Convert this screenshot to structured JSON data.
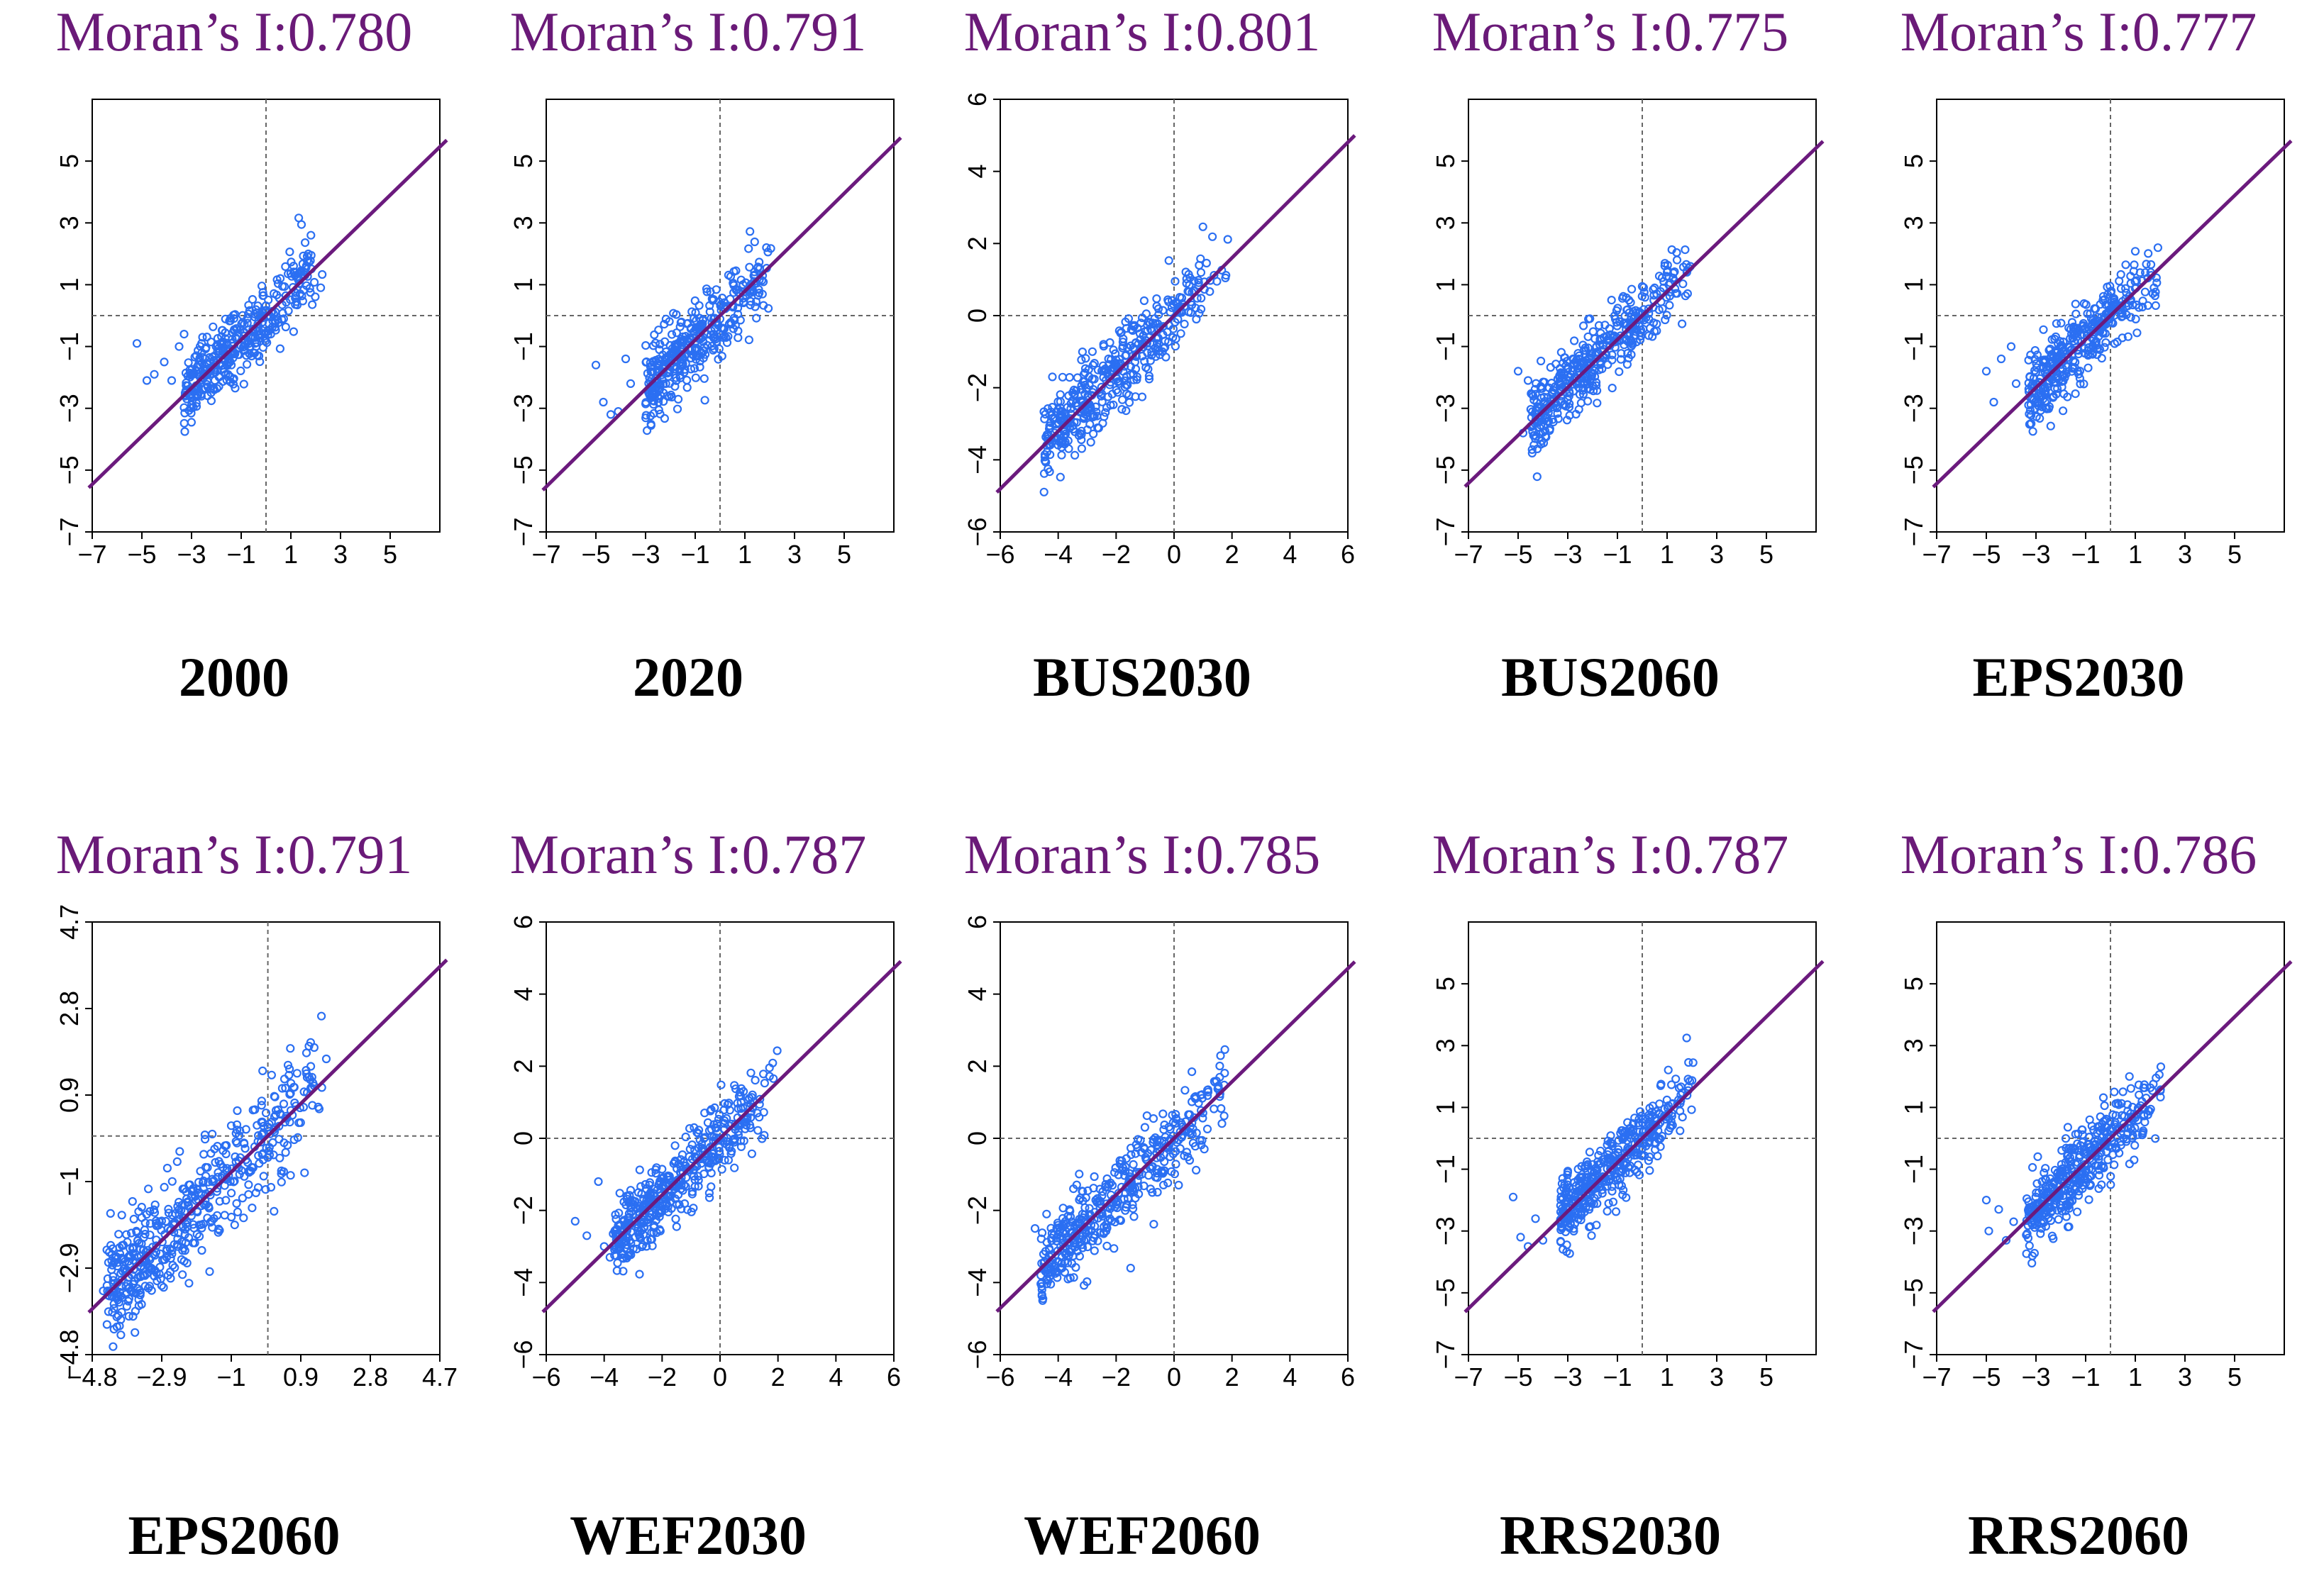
{
  "colors": {
    "title": "#6a1a78",
    "fit_line": "#6b1a7d",
    "points": "#2b6ff2",
    "reference": "#666666"
  },
  "chart_data": [
    {
      "type": "scatter",
      "title": "Moran’s I:0.780",
      "label": "2000",
      "xlim": [
        -7,
        7
      ],
      "ylim": [
        -7,
        7
      ],
      "xticks": [
        -7,
        -5,
        -3,
        -1,
        1,
        3,
        5
      ],
      "yticks": [
        -7,
        -5,
        -3,
        -1,
        1,
        3,
        5
      ],
      "xtick_labels": [
        "−7",
        "−5",
        "−3",
        "−1",
        "1",
        "3",
        "5"
      ],
      "ytick_labels": [
        "−7",
        "−5",
        "−3",
        "−1",
        "1",
        "3",
        "5"
      ],
      "vline": 0,
      "hline": 0,
      "slope": 0.78,
      "intercept": 0,
      "x_range": [
        -3.3,
        2.3
      ],
      "spread": 0.6,
      "n_points": 380,
      "seed": 11,
      "outliers": [
        [
          -5.2,
          -0.9
        ],
        [
          -4.8,
          -2.1
        ],
        [
          -4.5,
          -1.9
        ],
        [
          -4.1,
          -1.5
        ],
        [
          -3.8,
          -2.1
        ],
        [
          -3.5,
          -1.0
        ],
        [
          -3.3,
          -0.6
        ]
      ]
    },
    {
      "type": "scatter",
      "title": "Moran’s I:0.791",
      "label": "2020",
      "xlim": [
        -7,
        7
      ],
      "ylim": [
        -7,
        7
      ],
      "xticks": [
        -7,
        -5,
        -3,
        -1,
        1,
        3,
        5
      ],
      "yticks": [
        -7,
        -5,
        -3,
        -1,
        1,
        3,
        5
      ],
      "xtick_labels": [
        "−7",
        "−5",
        "−3",
        "−1",
        "1",
        "3",
        "5"
      ],
      "ytick_labels": [
        "−7",
        "−5",
        "−3",
        "−1",
        "1",
        "3",
        "5"
      ],
      "vline": 0,
      "hline": 0,
      "slope": 0.791,
      "intercept": 0,
      "x_range": [
        -3.0,
        2.2
      ],
      "spread": 0.62,
      "n_points": 380,
      "seed": 23,
      "outliers": [
        [
          -5.0,
          -1.6
        ],
        [
          -4.7,
          -2.8
        ],
        [
          -4.4,
          -3.2
        ],
        [
          -4.1,
          -3.1
        ],
        [
          -3.8,
          -1.4
        ],
        [
          -3.6,
          -2.2
        ]
      ]
    },
    {
      "type": "scatter",
      "title": "Moran’s I:0.801",
      "label": "BUS2030",
      "xlim": [
        -6,
        6
      ],
      "ylim": [
        -6,
        6
      ],
      "xticks": [
        -6,
        -4,
        -2,
        0,
        2,
        4,
        6
      ],
      "yticks": [
        -6,
        -4,
        -2,
        0,
        2,
        4,
        6
      ],
      "xtick_labels": [
        "−6",
        "−4",
        "−2",
        "0",
        "2",
        "4",
        "6"
      ],
      "ytick_labels": [
        "−6",
        "−4",
        "−2",
        "0",
        "2",
        "4",
        "6"
      ],
      "vline": 0,
      "hline": 0,
      "slope": 0.801,
      "intercept": 0,
      "x_range": [
        -4.5,
        2.0
      ],
      "spread": 0.55,
      "n_points": 420,
      "seed": 37,
      "outliers": [
        [
          -4.4,
          -3.6
        ],
        [
          -4.2,
          -1.7
        ],
        [
          -4.0,
          -2.6
        ],
        [
          -3.9,
          -3.4
        ]
      ]
    },
    {
      "type": "scatter",
      "title": "Moran’s I:0.775",
      "label": "BUS2060",
      "xlim": [
        -7,
        7
      ],
      "ylim": [
        -7,
        7
      ],
      "xticks": [
        -7,
        -5,
        -3,
        -1,
        1,
        3,
        5
      ],
      "yticks": [
        -7,
        -5,
        -3,
        -1,
        1,
        3,
        5
      ],
      "xtick_labels": [
        "−7",
        "−5",
        "−3",
        "−1",
        "1",
        "3",
        "5"
      ],
      "ytick_labels": [
        "−7",
        "−5",
        "−3",
        "−1",
        "1",
        "3",
        "5"
      ],
      "vline": 0,
      "hline": 0,
      "slope": 0.775,
      "intercept": 0,
      "x_range": [
        -4.5,
        2.2
      ],
      "spread": 0.6,
      "n_points": 420,
      "seed": 41,
      "outliers": [
        [
          -5.0,
          -1.8
        ],
        [
          -4.8,
          -3.8
        ],
        [
          -4.6,
          -2.1
        ],
        [
          -4.3,
          -3.4
        ]
      ]
    },
    {
      "type": "scatter",
      "title": "Moran’s I:0.777",
      "label": "EPS2030",
      "xlim": [
        -7,
        7
      ],
      "ylim": [
        -7,
        7
      ],
      "xticks": [
        -7,
        -5,
        -3,
        -1,
        1,
        3,
        5
      ],
      "yticks": [
        -7,
        -5,
        -3,
        -1,
        1,
        3,
        5
      ],
      "xtick_labels": [
        "−7",
        "−5",
        "−3",
        "−1",
        "1",
        "3",
        "5"
      ],
      "ytick_labels": [
        "−7",
        "−5",
        "−3",
        "−1",
        "1",
        "3",
        "5"
      ],
      "vline": 0,
      "hline": 0,
      "slope": 0.777,
      "intercept": 0,
      "x_range": [
        -3.3,
        2.1
      ],
      "spread": 0.6,
      "n_points": 380,
      "seed": 53,
      "outliers": [
        [
          -5.0,
          -1.8
        ],
        [
          -4.7,
          -2.8
        ],
        [
          -4.4,
          -1.4
        ],
        [
          -4.0,
          -1.0
        ],
        [
          -3.8,
          -2.2
        ]
      ]
    },
    {
      "type": "scatter",
      "title": "Moran’s I:0.791",
      "label": "EPS2060",
      "xlim": [
        -4.8,
        4.7
      ],
      "ylim": [
        -4.8,
        4.7
      ],
      "xticks": [
        -4.8,
        -2.9,
        -1,
        0.9,
        2.8,
        4.7
      ],
      "yticks": [
        -4.8,
        -2.9,
        -1,
        0.9,
        2.8,
        4.7
      ],
      "xtick_labels": [
        "−4.8",
        "−2.9",
        "−1",
        "0.9",
        "2.8",
        "4.7"
      ],
      "ytick_labels": [
        "−4.8",
        "−2.9",
        "−1",
        "0.9",
        "2.8",
        "4.7"
      ],
      "vline": 0,
      "hline": 0,
      "slope": 0.791,
      "intercept": 0,
      "x_range": [
        -4.4,
        1.6
      ],
      "spread": 0.55,
      "n_points": 520,
      "seed": 67,
      "outliers": [
        [
          -4.5,
          -3.4
        ],
        [
          -4.4,
          -2.5
        ],
        [
          -4.3,
          -1.7
        ],
        [
          -4.1,
          -3.6
        ]
      ]
    },
    {
      "type": "scatter",
      "title": "Moran’s I:0.787",
      "label": "WEF2030",
      "xlim": [
        -6,
        6
      ],
      "ylim": [
        -6,
        6
      ],
      "xticks": [
        -6,
        -4,
        -2,
        0,
        2,
        4,
        6
      ],
      "yticks": [
        -6,
        -4,
        -2,
        0,
        2,
        4,
        6
      ],
      "xtick_labels": [
        "−6",
        "−4",
        "−2",
        "0",
        "2",
        "4",
        "6"
      ],
      "ytick_labels": [
        "−6",
        "−4",
        "−2",
        "0",
        "2",
        "4",
        "6"
      ],
      "vline": 0,
      "hline": 0,
      "slope": 0.787,
      "intercept": 0,
      "x_range": [
        -3.7,
        2.0
      ],
      "spread": 0.5,
      "n_points": 460,
      "seed": 71,
      "outliers": [
        [
          -5.0,
          -2.3
        ],
        [
          -4.6,
          -2.7
        ],
        [
          -4.2,
          -1.2
        ],
        [
          -4.0,
          -3.0
        ],
        [
          -3.8,
          -3.3
        ]
      ]
    },
    {
      "type": "scatter",
      "title": "Moran’s I:0.785",
      "label": "WEF2060",
      "xlim": [
        -6,
        6
      ],
      "ylim": [
        -6,
        6
      ],
      "xticks": [
        -6,
        -4,
        -2,
        0,
        2,
        4,
        6
      ],
      "yticks": [
        -6,
        -4,
        -2,
        0,
        2,
        4,
        6
      ],
      "xtick_labels": [
        "−6",
        "−4",
        "−2",
        "0",
        "2",
        "4",
        "6"
      ],
      "ytick_labels": [
        "−6",
        "−4",
        "−2",
        "0",
        "2",
        "4",
        "6"
      ],
      "vline": 0,
      "hline": 0,
      "slope": 0.785,
      "intercept": 0,
      "x_range": [
        -4.6,
        2.0
      ],
      "spread": 0.55,
      "n_points": 440,
      "seed": 83,
      "outliers": [
        [
          -4.8,
          -2.5
        ],
        [
          -4.6,
          -3.8
        ],
        [
          -4.4,
          -2.1
        ],
        [
          -1.5,
          -3.6
        ]
      ]
    },
    {
      "type": "scatter",
      "title": "Moran’s I:0.787",
      "label": "RRS2030",
      "xlim": [
        -7,
        7
      ],
      "ylim": [
        -7,
        7
      ],
      "xticks": [
        -7,
        -5,
        -3,
        -1,
        1,
        3,
        5
      ],
      "yticks": [
        -7,
        -5,
        -3,
        -1,
        1,
        3,
        5
      ],
      "xtick_labels": [
        "−7",
        "−5",
        "−3",
        "−1",
        "1",
        "3",
        "5"
      ],
      "ytick_labels": [
        "−7",
        "−5",
        "−3",
        "−1",
        "1",
        "3",
        "5"
      ],
      "vline": 0,
      "hline": 0,
      "slope": 0.787,
      "intercept": 0,
      "x_range": [
        -3.3,
        2.2
      ],
      "spread": 0.6,
      "n_points": 420,
      "seed": 97,
      "outliers": [
        [
          -5.2,
          -1.9
        ],
        [
          -4.9,
          -3.2
        ],
        [
          -4.6,
          -3.5
        ],
        [
          -4.3,
          -2.6
        ],
        [
          -4.0,
          -3.3
        ]
      ]
    },
    {
      "type": "scatter",
      "title": "Moran’s I:0.786",
      "label": "RRS2060",
      "xlim": [
        -7,
        7
      ],
      "ylim": [
        -7,
        7
      ],
      "xticks": [
        -7,
        -5,
        -3,
        -1,
        1,
        3,
        5
      ],
      "yticks": [
        -7,
        -5,
        -3,
        -1,
        1,
        3,
        5
      ],
      "xtick_labels": [
        "−7",
        "−5",
        "−3",
        "−1",
        "1",
        "3",
        "5"
      ],
      "ytick_labels": [
        "−7",
        "−5",
        "−3",
        "−1",
        "1",
        "3",
        "5"
      ],
      "vline": 0,
      "hline": 0,
      "slope": 0.786,
      "intercept": 0,
      "x_range": [
        -3.4,
        2.1
      ],
      "spread": 0.6,
      "n_points": 420,
      "seed": 101,
      "outliers": [
        [
          -5.0,
          -2.0
        ],
        [
          -4.9,
          -3.0
        ],
        [
          -4.5,
          -2.3
        ],
        [
          -4.2,
          -3.3
        ],
        [
          -3.9,
          -2.7
        ]
      ]
    }
  ]
}
